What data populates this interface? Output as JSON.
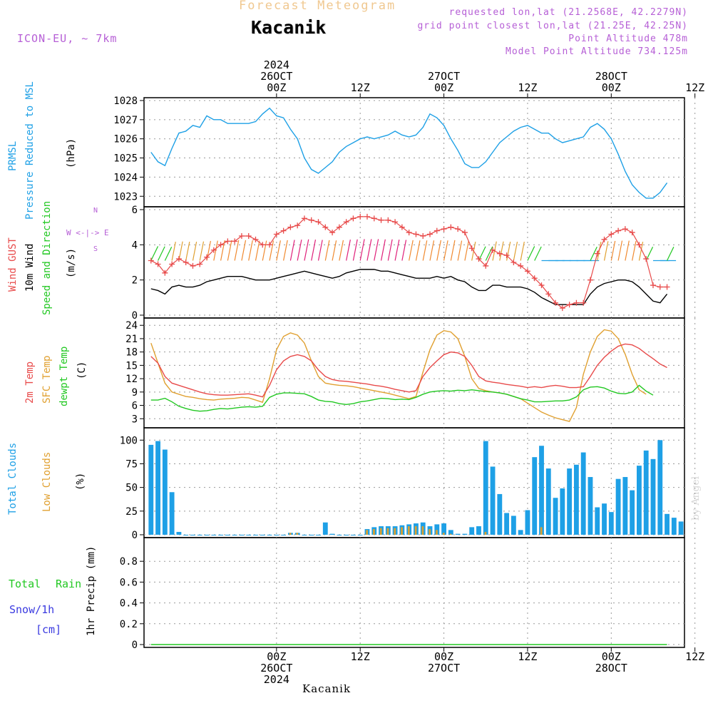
{
  "header": {
    "forecast_title": "Forecast Meteogram",
    "location": "Kacanik",
    "model": "ICON-EU, ~ 7km",
    "requested": "requested lon,lat (21.2568E, 42.2279N)",
    "grid_point": "grid point closest lon,lat (21.25E, 42.25N)",
    "point_altitude": "Point Altitude 478m",
    "model_altitude": "Model Point Altitude 734.125m",
    "footer_location": "Kacanik",
    "watermark": "by Angel"
  },
  "time_axis": {
    "top": [
      {
        "hour": 0,
        "lines": [
          "2024",
          "26OCT",
          "00Z"
        ]
      },
      {
        "hour": 12,
        "lines": [
          "12Z"
        ]
      },
      {
        "hour": 24,
        "lines": [
          "27OCT",
          "00Z"
        ]
      },
      {
        "hour": 36,
        "lines": [
          "12Z"
        ]
      },
      {
        "hour": 48,
        "lines": [
          "28OCT",
          "00Z"
        ]
      },
      {
        "hour": 60,
        "lines": [
          "12Z"
        ]
      }
    ],
    "bottom": [
      {
        "hour": 0,
        "lines": [
          "00Z",
          "26OCT",
          "2024"
        ]
      },
      {
        "hour": 12,
        "lines": [
          "12Z"
        ]
      },
      {
        "hour": 24,
        "lines": [
          "00Z",
          "27OCT"
        ]
      },
      {
        "hour": 36,
        "lines": [
          "12Z"
        ]
      },
      {
        "hour": 48,
        "lines": [
          "00Z",
          "28OCT"
        ]
      },
      {
        "hour": 60,
        "lines": [
          "12Z"
        ]
      }
    ]
  },
  "panels": {
    "pressure": {
      "label1": "PRMSL",
      "label2": "Pressure Reduced to MSL",
      "unit": "(hPa)",
      "ticks": [
        "1023",
        "1024",
        "1025",
        "1026",
        "1027",
        "1028"
      ]
    },
    "wind": {
      "label_gust": "Wind GUST",
      "label_wind": "10m Wind",
      "label_dir": "Speed and Direction",
      "unit": "(m/s)",
      "compass_n": "N",
      "compass_ew": "W <-|-> E",
      "compass_s": "S",
      "ticks": [
        "0",
        "2",
        "4",
        "6"
      ]
    },
    "temp": {
      "label_2m": "2m Temp",
      "label_sfc": "SFC Temp",
      "label_dew": "dewpt Temp",
      "unit": "(C)",
      "ticks": [
        "3",
        "6",
        "9",
        "12",
        "15",
        "18",
        "21",
        "24"
      ]
    },
    "clouds": {
      "label_total": "Total Clouds",
      "label_low": "Low Clouds",
      "unit": "(%)",
      "ticks": [
        "0",
        "25",
        "50",
        "75",
        "100"
      ]
    },
    "precip": {
      "label_rain1": "Total",
      "label_rain2": "Rain",
      "label_snow": "Snow/1h",
      "label_cm": "[cm]",
      "label_axis": "1hr Precip (mm)",
      "ticks": [
        "0",
        "0.2",
        "0.4",
        "0.6",
        "0.8"
      ]
    }
  },
  "colors": {
    "pressure": "#1ea0e6",
    "gust": "#e84a4a",
    "wind": "#000000",
    "temp2m": "#e84a4a",
    "sfc": "#e0a030",
    "dew": "#22c822",
    "total_clouds": "#1ea0e6",
    "low_clouds": "#d9a030",
    "rain": "#22c822",
    "snow": "#3a3ae0",
    "title_forecast": "#f0c890",
    "info": "#b65fd6"
  },
  "chart_data": [
    {
      "type": "line",
      "series": [
        {
          "name": "PRMSL",
          "x_start_hour": -18,
          "x_step_hours": 1,
          "values": [
            1025.3,
            1024.8,
            1024.6,
            1025.5,
            1026.3,
            1026.4,
            1026.7,
            1026.6,
            1027.2,
            1027.0,
            1027.0,
            1026.8,
            1026.8,
            1026.8,
            1026.8,
            1026.9,
            1027.3,
            1027.6,
            1027.2,
            1027.1,
            1026.5,
            1026.0,
            1025.0,
            1024.4,
            1024.2,
            1024.5,
            1024.8,
            1025.3,
            1025.6,
            1025.8,
            1026.0,
            1026.1,
            1026.0,
            1026.1,
            1026.2,
            1026.4,
            1026.2,
            1026.1,
            1026.2,
            1026.6,
            1027.3,
            1027.1,
            1026.7,
            1026.0,
            1025.4,
            1024.7,
            1024.5,
            1024.5,
            1024.8,
            1025.3,
            1025.8,
            1026.1,
            1026.4,
            1026.6,
            1026.7,
            1026.5,
            1026.3,
            1026.3,
            1026.0,
            1025.8,
            1025.9,
            1026.0,
            1026.1,
            1026.6,
            1026.8,
            1026.5,
            1026.0,
            1025.2,
            1024.3,
            1023.6,
            1023.2,
            1022.9,
            1022.9,
            1023.2,
            1023.7
          ]
        }
      ],
      "ylabel": "(hPa)",
      "ylim": [
        1022.6,
        1028
      ]
    },
    {
      "type": "line",
      "series": [
        {
          "name": "Wind GUST",
          "x_start_hour": -18,
          "x_step_hours": 1,
          "values": [
            3.1,
            2.9,
            2.4,
            2.9,
            3.2,
            3.0,
            2.8,
            2.9,
            3.3,
            3.7,
            4.0,
            4.2,
            4.2,
            4.5,
            4.5,
            4.3,
            4.0,
            4.0,
            4.6,
            4.8,
            5.0,
            5.1,
            5.5,
            5.4,
            5.3,
            5.0,
            4.7,
            5.0,
            5.3,
            5.5,
            5.6,
            5.6,
            5.5,
            5.4,
            5.4,
            5.3,
            5.0,
            4.7,
            4.6,
            4.5,
            4.6,
            4.8,
            4.9,
            5.0,
            4.9,
            4.7,
            3.8,
            3.2,
            2.8,
            3.7,
            3.5,
            3.4,
            3.0,
            2.8,
            2.5,
            2.1,
            1.7,
            1.2,
            0.7,
            0.4,
            0.6,
            0.7,
            0.7,
            2.0,
            3.5,
            4.3,
            4.6,
            4.8,
            4.9,
            4.7,
            4.0,
            3.2,
            1.7,
            1.6,
            1.6
          ]
        },
        {
          "name": "10m Wind",
          "x_start_hour": -18,
          "x_step_hours": 1,
          "values": [
            1.5,
            1.4,
            1.2,
            1.6,
            1.7,
            1.6,
            1.6,
            1.7,
            1.9,
            2.0,
            2.1,
            2.2,
            2.2,
            2.2,
            2.1,
            2.0,
            2.0,
            2.0,
            2.1,
            2.2,
            2.3,
            2.4,
            2.5,
            2.4,
            2.3,
            2.2,
            2.1,
            2.2,
            2.4,
            2.5,
            2.6,
            2.6,
            2.6,
            2.5,
            2.5,
            2.4,
            2.3,
            2.2,
            2.1,
            2.1,
            2.1,
            2.2,
            2.1,
            2.2,
            2.0,
            1.9,
            1.6,
            1.4,
            1.4,
            1.7,
            1.7,
            1.6,
            1.6,
            1.6,
            1.5,
            1.3,
            1.0,
            0.8,
            0.6,
            0.6,
            0.6,
            0.6,
            0.6,
            1.2,
            1.6,
            1.8,
            1.9,
            2.0,
            2.0,
            1.9,
            1.6,
            1.2,
            0.8,
            0.7,
            1.2
          ]
        }
      ],
      "ylabel": "(m/s)",
      "ylim": [
        0,
        6
      ]
    },
    {
      "type": "line",
      "series": [
        {
          "name": "2m Temp",
          "x_start_hour": -18,
          "x_step_hours": 1,
          "values": [
            17.0,
            15.5,
            12.5,
            11.0,
            10.5,
            10.0,
            9.5,
            9.0,
            8.6,
            8.4,
            8.3,
            8.3,
            8.4,
            8.5,
            8.6,
            8.3,
            7.9,
            10.5,
            14.0,
            16.0,
            17.0,
            17.4,
            17.0,
            16.0,
            14.0,
            12.5,
            11.8,
            11.5,
            11.4,
            11.2,
            11.0,
            10.8,
            10.5,
            10.3,
            10.0,
            9.6,
            9.3,
            9.0,
            9.3,
            12.5,
            14.5,
            16.0,
            17.4,
            18.0,
            17.8,
            17.0,
            15.0,
            12.5,
            11.5,
            11.2,
            11.0,
            10.7,
            10.5,
            10.3,
            10.0,
            10.2,
            10.0,
            10.3,
            10.5,
            10.3,
            10.0,
            10.0,
            10.2,
            12.5,
            15.0,
            16.8,
            18.2,
            19.3,
            19.8,
            19.6,
            18.8,
            17.6,
            16.5,
            15.3,
            14.5
          ]
        },
        {
          "name": "SFC Temp",
          "x_start_hour": -18,
          "x_step_hours": 1,
          "values": [
            20.0,
            15.5,
            11.0,
            9.0,
            8.5,
            8.0,
            7.8,
            7.5,
            7.3,
            7.2,
            7.4,
            7.5,
            7.6,
            7.8,
            7.7,
            7.2,
            6.7,
            12.0,
            18.5,
            21.5,
            22.3,
            21.8,
            20.0,
            16.0,
            12.5,
            11.0,
            10.7,
            10.5,
            10.4,
            10.2,
            9.9,
            9.6,
            9.3,
            9.0,
            8.7,
            8.3,
            7.9,
            7.5,
            8.0,
            13.5,
            18.5,
            21.8,
            22.8,
            22.5,
            21.0,
            17.0,
            12.0,
            9.8,
            9.3,
            9.0,
            8.8,
            8.5,
            8.0,
            7.5,
            6.5,
            5.5,
            4.5,
            3.8,
            3.2,
            2.8,
            2.4,
            5.5,
            13.0,
            18.0,
            21.5,
            23.0,
            22.7,
            21.0,
            17.5,
            13.0,
            9.5,
            8.5
          ]
        },
        {
          "name": "dewpt Temp",
          "x_start_hour": -18,
          "x_step_hours": 1,
          "values": [
            7.2,
            7.2,
            7.6,
            6.8,
            5.8,
            5.3,
            4.9,
            4.7,
            4.8,
            5.1,
            5.3,
            5.2,
            5.4,
            5.6,
            5.7,
            5.6,
            5.8,
            7.8,
            8.5,
            8.8,
            8.8,
            8.7,
            8.6,
            8.0,
            7.2,
            6.9,
            6.8,
            6.4,
            6.2,
            6.4,
            6.8,
            7.0,
            7.3,
            7.6,
            7.5,
            7.3,
            7.4,
            7.3,
            7.8,
            8.5,
            9.0,
            9.2,
            9.3,
            9.2,
            9.4,
            9.3,
            9.5,
            9.3,
            9.1,
            9.0,
            8.8,
            8.5,
            8.0,
            7.5,
            7.2,
            6.8,
            6.8,
            6.9,
            7.0,
            7.0,
            7.2,
            7.9,
            9.5,
            10.1,
            10.2,
            9.9,
            9.2,
            8.7,
            8.6,
            9.0,
            10.5,
            9.2,
            8.3
          ]
        }
      ],
      "ylabel": "(C)",
      "ylim": [
        1.6,
        25
      ]
    },
    {
      "type": "bar",
      "series": [
        {
          "name": "Total Clouds",
          "x_start_hour": -18,
          "x_step_hours": 1,
          "values": [
            95,
            99,
            90,
            45,
            3,
            0,
            0,
            0,
            0,
            0,
            0,
            0,
            0,
            0,
            0,
            0,
            0,
            0,
            0,
            0,
            2,
            2,
            0,
            0,
            0,
            13,
            1,
            0,
            0,
            0,
            0,
            6,
            8,
            9,
            9,
            9,
            10,
            11,
            12,
            13,
            9,
            11,
            12,
            5,
            1,
            1,
            8,
            9,
            99,
            72,
            43,
            23,
            20,
            5,
            26,
            82,
            94,
            70,
            39,
            49,
            70,
            74,
            87,
            61,
            29,
            33,
            24,
            59,
            61,
            47,
            73,
            89,
            80,
            100,
            22,
            18,
            14
          ]
        },
        {
          "name": "Low Clouds",
          "x_start_hour": -18,
          "x_step_hours": 1,
          "values": [
            0,
            0,
            0,
            0,
            0,
            0,
            0,
            0,
            0,
            0,
            0,
            0,
            0,
            0,
            0,
            0,
            0,
            0,
            0,
            0,
            2,
            2,
            0,
            0,
            0,
            0,
            0,
            0,
            0,
            0,
            0,
            5,
            6,
            7,
            7,
            7,
            8,
            9,
            9,
            9,
            6,
            5,
            2,
            1,
            0,
            0,
            0,
            0,
            3,
            0,
            0,
            0,
            0,
            0,
            0,
            0,
            8,
            0,
            0,
            0,
            0,
            0,
            0,
            0,
            0,
            0,
            0,
            0,
            0,
            0,
            0,
            0,
            0,
            0,
            0,
            0,
            0
          ]
        }
      ],
      "ylabel": "(%)",
      "ylim": [
        0,
        110
      ]
    },
    {
      "type": "line",
      "series": [
        {
          "name": "Total Rain",
          "x_start_hour": -18,
          "x_step_hours": 1,
          "values": [
            0,
            0,
            0,
            0,
            0,
            0,
            0,
            0,
            0,
            0,
            0,
            0,
            0,
            0,
            0,
            0,
            0,
            0,
            0,
            0,
            0,
            0,
            0,
            0,
            0,
            0,
            0,
            0,
            0,
            0,
            0,
            0,
            0,
            0,
            0,
            0,
            0,
            0,
            0,
            0,
            0,
            0,
            0,
            0,
            0,
            0,
            0,
            0,
            0,
            0,
            0,
            0,
            0,
            0,
            0,
            0,
            0,
            0,
            0,
            0,
            0,
            0,
            0,
            0,
            0,
            0,
            0,
            0,
            0,
            0,
            0,
            0,
            0,
            0,
            0
          ]
        },
        {
          "name": "Snow/1h",
          "x_start_hour": -18,
          "x_step_hours": 1,
          "values": [
            0,
            0,
            0,
            0,
            0,
            0,
            0,
            0,
            0,
            0,
            0,
            0,
            0,
            0,
            0,
            0,
            0,
            0,
            0,
            0,
            0,
            0,
            0,
            0,
            0,
            0,
            0,
            0,
            0,
            0,
            0,
            0,
            0,
            0,
            0,
            0,
            0,
            0,
            0,
            0,
            0,
            0,
            0,
            0,
            0,
            0,
            0,
            0,
            0,
            0,
            0,
            0,
            0,
            0,
            0,
            0,
            0,
            0,
            0,
            0,
            0,
            0,
            0,
            0,
            0,
            0,
            0,
            0,
            0,
            0,
            0,
            0,
            0,
            0,
            0
          ]
        }
      ],
      "ylabel": "1hr Precip (mm)",
      "ylim": [
        0,
        1
      ]
    }
  ]
}
